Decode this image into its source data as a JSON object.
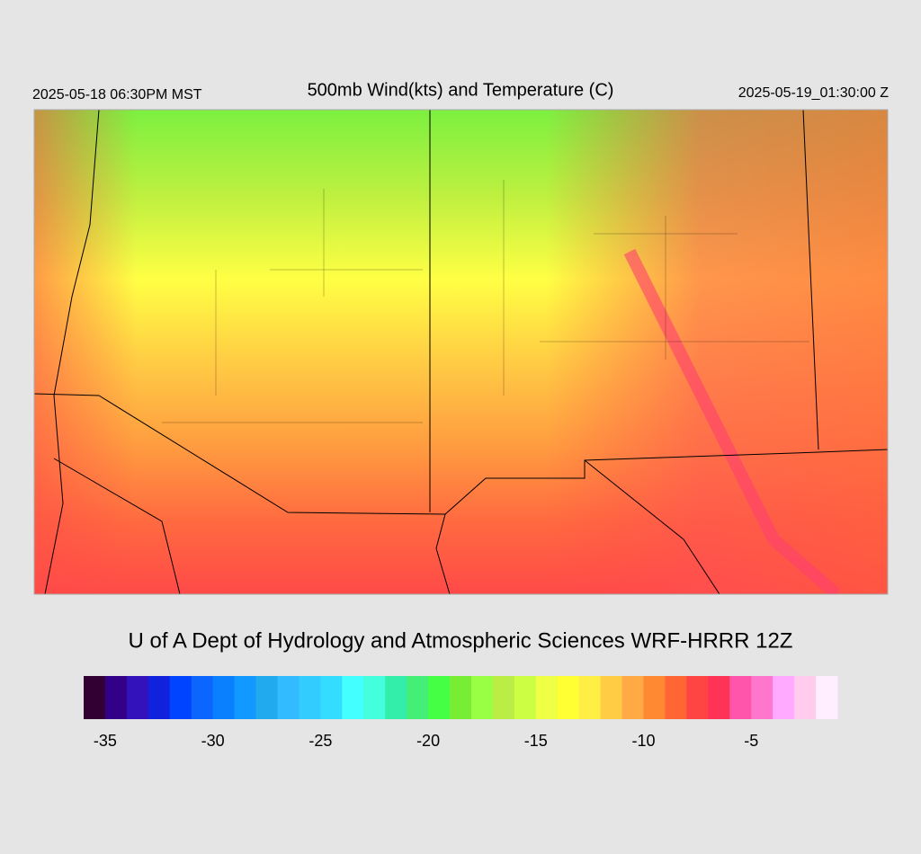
{
  "header": {
    "title": "500mb Wind(kts) and Temperature (C)",
    "valid_local": "2025-05-18 06:30PM MST",
    "valid_utc": "2025-05-19_01:30:00 Z"
  },
  "credit": "U of A Dept of Hydrology and Atmospheric Sciences WRF-HRRR 12Z",
  "colorbar": {
    "min": -36,
    "max": -1,
    "ticks": [
      -35,
      -30,
      -25,
      -20,
      -15,
      -10,
      -5
    ],
    "colors": [
      "#330033",
      "#330088",
      "#3311bb",
      "#1122dd",
      "#0044ff",
      "#0a66ff",
      "#0a80ff",
      "#1199ff",
      "#22aaee",
      "#33bbff",
      "#33ccff",
      "#33ddff",
      "#44ffff",
      "#44ffdd",
      "#33eeaa",
      "#44ee77",
      "#44ff44",
      "#77ee33",
      "#99ff44",
      "#bbee44",
      "#ccff44",
      "#eeff44",
      "#ffff33",
      "#ffee44",
      "#ffcc44",
      "#ffaa44",
      "#ff8833",
      "#ff6633",
      "#ff4444",
      "#ff3355",
      "#ff55aa",
      "#ff77cc",
      "#ffaaff",
      "#ffccee",
      "#ffeeff"
    ]
  }
}
